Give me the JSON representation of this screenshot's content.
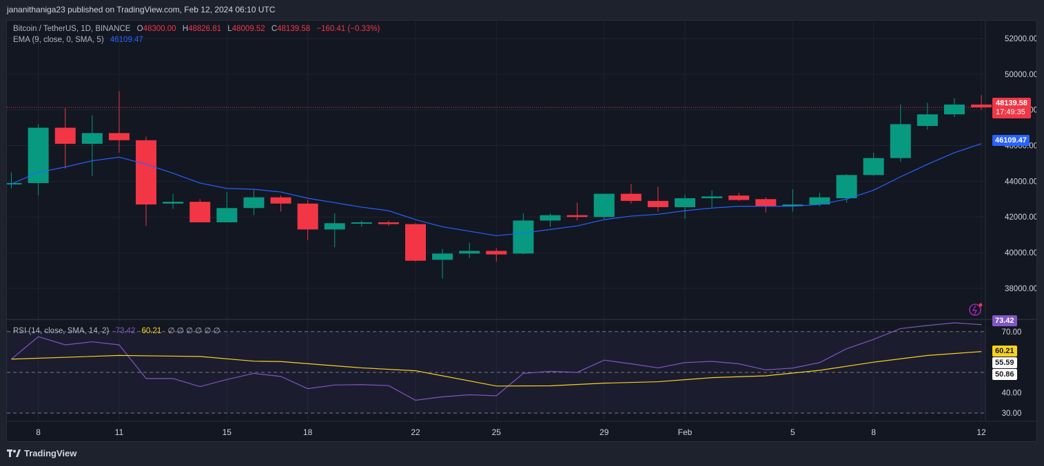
{
  "header": {
    "published": "jananithaniga23 published on TradingView.com, Feb 12, 2024 06:10 UTC"
  },
  "legend": {
    "symbol": "Bitcoin / TetherUS, 1D, BINANCE",
    "o_label": "O",
    "o": "48300.00",
    "h_label": "H",
    "h": "48826.81",
    "l_label": "L",
    "l": "48009.52",
    "c_label": "C",
    "c": "48139.58",
    "change": "−160.41 (−0.33%)",
    "ema_label": "EMA (9, close, 0, SMA, 5)",
    "ema_value": "46109.47",
    "rsi_label": "RSI (14, close, SMA, 14, 2)",
    "rsi_value": "73.42",
    "rsi_ma_value": "60.21",
    "rsi_extra": "∅ ∅ ∅ ∅ ∅ ∅"
  },
  "labels": {
    "last_price": "48139.58",
    "countdown": "17:49:35",
    "ema": "46109.47",
    "rsi": "73.42",
    "rsi_ma": "60.21",
    "rsi_mid": "55.59",
    "rsi_low": "50.86"
  },
  "footer": {
    "brand": "TradingView"
  },
  "colors": {
    "up": "#089981",
    "down": "#f23645",
    "ema": "#2962ff",
    "rsi": "#7e57c2",
    "rsi_ma": "#f7d21e",
    "background": "#131722"
  },
  "chart_data": {
    "type": "candlestick",
    "x_labels": [
      {
        "i": 1,
        "label": "8"
      },
      {
        "i": 4,
        "label": "11"
      },
      {
        "i": 8,
        "label": "15"
      },
      {
        "i": 11,
        "label": "18"
      },
      {
        "i": 15,
        "label": "22"
      },
      {
        "i": 18,
        "label": "25"
      },
      {
        "i": 22,
        "label": "29"
      },
      {
        "i": 25,
        "label": "Feb"
      },
      {
        "i": 29,
        "label": "5"
      },
      {
        "i": 32,
        "label": "8"
      },
      {
        "i": 36,
        "label": "12"
      }
    ],
    "price_axis": {
      "ticks": [
        "52000.00",
        "50000.00",
        "48000.00",
        "46000.00",
        "44000.00",
        "42000.00",
        "40000.00",
        "38000.00"
      ],
      "ylim": [
        36300,
        53000
      ]
    },
    "rsi_axis": {
      "ticks": [
        "70.00",
        "40.00",
        "30.00"
      ],
      "ylim": [
        26,
        76
      ],
      "upper_band": 70,
      "middle": 50,
      "lower_band": 30
    },
    "candles": [
      {
        "o": 43900,
        "h": 44500,
        "l": 43600,
        "c": 43900
      },
      {
        "o": 43900,
        "h": 47200,
        "l": 43200,
        "c": 47000
      },
      {
        "o": 47000,
        "h": 48100,
        "l": 44700,
        "c": 46100
      },
      {
        "o": 46100,
        "h": 47700,
        "l": 44300,
        "c": 46700
      },
      {
        "o": 46700,
        "h": 49050,
        "l": 45600,
        "c": 46300
      },
      {
        "o": 46300,
        "h": 46500,
        "l": 41500,
        "c": 42700
      },
      {
        "o": 42750,
        "h": 43300,
        "l": 42450,
        "c": 42850
      },
      {
        "o": 42850,
        "h": 43000,
        "l": 41700,
        "c": 41700
      },
      {
        "o": 41700,
        "h": 43400,
        "l": 41700,
        "c": 42500
      },
      {
        "o": 42500,
        "h": 43500,
        "l": 42100,
        "c": 43100
      },
      {
        "o": 43100,
        "h": 43200,
        "l": 42300,
        "c": 42750
      },
      {
        "o": 42750,
        "h": 42950,
        "l": 40700,
        "c": 41300
      },
      {
        "o": 41300,
        "h": 42200,
        "l": 40300,
        "c": 41650
      },
      {
        "o": 41650,
        "h": 41800,
        "l": 41450,
        "c": 41700
      },
      {
        "o": 41700,
        "h": 41800,
        "l": 41500,
        "c": 41600
      },
      {
        "o": 41600,
        "h": 41650,
        "l": 39500,
        "c": 39550
      },
      {
        "o": 39600,
        "h": 40200,
        "l": 38550,
        "c": 39950
      },
      {
        "o": 39950,
        "h": 40550,
        "l": 39700,
        "c": 40100
      },
      {
        "o": 40100,
        "h": 40250,
        "l": 39500,
        "c": 39900
      },
      {
        "o": 39950,
        "h": 42200,
        "l": 39900,
        "c": 41800
      },
      {
        "o": 41800,
        "h": 42200,
        "l": 41450,
        "c": 42100
      },
      {
        "o": 42100,
        "h": 42800,
        "l": 41800,
        "c": 42000
      },
      {
        "o": 42000,
        "h": 43300,
        "l": 41900,
        "c": 43300
      },
      {
        "o": 43300,
        "h": 43850,
        "l": 42750,
        "c": 42900
      },
      {
        "o": 42900,
        "h": 43700,
        "l": 42300,
        "c": 42550
      },
      {
        "o": 42550,
        "h": 43250,
        "l": 41900,
        "c": 43050
      },
      {
        "o": 43050,
        "h": 43500,
        "l": 42550,
        "c": 43150
      },
      {
        "o": 43200,
        "h": 43350,
        "l": 42900,
        "c": 42950
      },
      {
        "o": 43000,
        "h": 43100,
        "l": 42250,
        "c": 42600
      },
      {
        "o": 42600,
        "h": 43550,
        "l": 42300,
        "c": 42700
      },
      {
        "o": 42700,
        "h": 43350,
        "l": 42600,
        "c": 43100
      },
      {
        "o": 43050,
        "h": 44400,
        "l": 42800,
        "c": 44350
      },
      {
        "o": 44350,
        "h": 45600,
        "l": 44300,
        "c": 45300
      },
      {
        "o": 45300,
        "h": 48300,
        "l": 45100,
        "c": 47200
      },
      {
        "o": 47100,
        "h": 48400,
        "l": 46900,
        "c": 47750
      },
      {
        "o": 47750,
        "h": 48650,
        "l": 47600,
        "c": 48300
      },
      {
        "o": 48300,
        "h": 48826.81,
        "l": 48009.52,
        "c": 48139.58
      }
    ],
    "ema": [
      {
        "i": 0,
        "v": 43850
      },
      {
        "i": 1,
        "v": 44500
      },
      {
        "i": 2,
        "v": 44800
      },
      {
        "i": 3,
        "v": 45150
      },
      {
        "i": 4,
        "v": 45350
      },
      {
        "i": 5,
        "v": 44950
      },
      {
        "i": 6,
        "v": 44450
      },
      {
        "i": 7,
        "v": 43900
      },
      {
        "i": 8,
        "v": 43600
      },
      {
        "i": 9,
        "v": 43550
      },
      {
        "i": 10,
        "v": 43400
      },
      {
        "i": 11,
        "v": 43050
      },
      {
        "i": 12,
        "v": 42800
      },
      {
        "i": 13,
        "v": 42550
      },
      {
        "i": 14,
        "v": 42350
      },
      {
        "i": 15,
        "v": 41850
      },
      {
        "i": 16,
        "v": 41450
      },
      {
        "i": 17,
        "v": 41200
      },
      {
        "i": 18,
        "v": 40950
      },
      {
        "i": 19,
        "v": 41100
      },
      {
        "i": 20,
        "v": 41300
      },
      {
        "i": 21,
        "v": 41500
      },
      {
        "i": 22,
        "v": 41850
      },
      {
        "i": 23,
        "v": 42050
      },
      {
        "i": 24,
        "v": 42150
      },
      {
        "i": 25,
        "v": 42350
      },
      {
        "i": 26,
        "v": 42500
      },
      {
        "i": 27,
        "v": 42600
      },
      {
        "i": 28,
        "v": 42600
      },
      {
        "i": 29,
        "v": 42600
      },
      {
        "i": 30,
        "v": 42700
      },
      {
        "i": 31,
        "v": 43000
      },
      {
        "i": 32,
        "v": 43500
      },
      {
        "i": 33,
        "v": 44250
      },
      {
        "i": 34,
        "v": 44950
      },
      {
        "i": 35,
        "v": 45600
      },
      {
        "i": 36,
        "v": 46109.47
      }
    ],
    "rsi": [
      {
        "i": 0,
        "v": 56.5
      },
      {
        "i": 1,
        "v": 67.5
      },
      {
        "i": 2,
        "v": 63.5
      },
      {
        "i": 3,
        "v": 65
      },
      {
        "i": 4,
        "v": 63.5
      },
      {
        "i": 5,
        "v": 47
      },
      {
        "i": 6,
        "v": 47
      },
      {
        "i": 7,
        "v": 43
      },
      {
        "i": 8,
        "v": 46.5
      },
      {
        "i": 9,
        "v": 49.5
      },
      {
        "i": 10,
        "v": 48
      },
      {
        "i": 11,
        "v": 42
      },
      {
        "i": 12,
        "v": 43.8
      },
      {
        "i": 13,
        "v": 44
      },
      {
        "i": 14,
        "v": 43.5
      },
      {
        "i": 15,
        "v": 36.3
      },
      {
        "i": 16,
        "v": 38
      },
      {
        "i": 17,
        "v": 39
      },
      {
        "i": 18,
        "v": 38.5
      },
      {
        "i": 19,
        "v": 49.5
      },
      {
        "i": 20,
        "v": 50.5
      },
      {
        "i": 21,
        "v": 50
      },
      {
        "i": 22,
        "v": 56
      },
      {
        "i": 23,
        "v": 54.2
      },
      {
        "i": 24,
        "v": 52.2
      },
      {
        "i": 25,
        "v": 54.8
      },
      {
        "i": 26,
        "v": 55.4
      },
      {
        "i": 27,
        "v": 54.2
      },
      {
        "i": 28,
        "v": 51.2
      },
      {
        "i": 29,
        "v": 52.1
      },
      {
        "i": 30,
        "v": 54.8
      },
      {
        "i": 31,
        "v": 61.6
      },
      {
        "i": 32,
        "v": 66.2
      },
      {
        "i": 33,
        "v": 71.5
      },
      {
        "i": 34,
        "v": 73
      },
      {
        "i": 35,
        "v": 74.3
      },
      {
        "i": 36,
        "v": 73.42
      }
    ],
    "rsi_ma": [
      {
        "i": 0,
        "v": 56.5
      },
      {
        "i": 4,
        "v": 58.3
      },
      {
        "i": 7,
        "v": 57.8
      },
      {
        "i": 9,
        "v": 55.5
      },
      {
        "i": 10,
        "v": 55.3
      },
      {
        "i": 13,
        "v": 52.2
      },
      {
        "i": 15,
        "v": 50.8
      },
      {
        "i": 18,
        "v": 43.3
      },
      {
        "i": 20,
        "v": 43.4
      },
      {
        "i": 22,
        "v": 44.7
      },
      {
        "i": 24,
        "v": 45.4
      },
      {
        "i": 26,
        "v": 47.4
      },
      {
        "i": 28,
        "v": 48.3
      },
      {
        "i": 30,
        "v": 51.0
      },
      {
        "i": 32,
        "v": 55.0
      },
      {
        "i": 34,
        "v": 58.3
      },
      {
        "i": 36,
        "v": 60.21
      }
    ]
  }
}
